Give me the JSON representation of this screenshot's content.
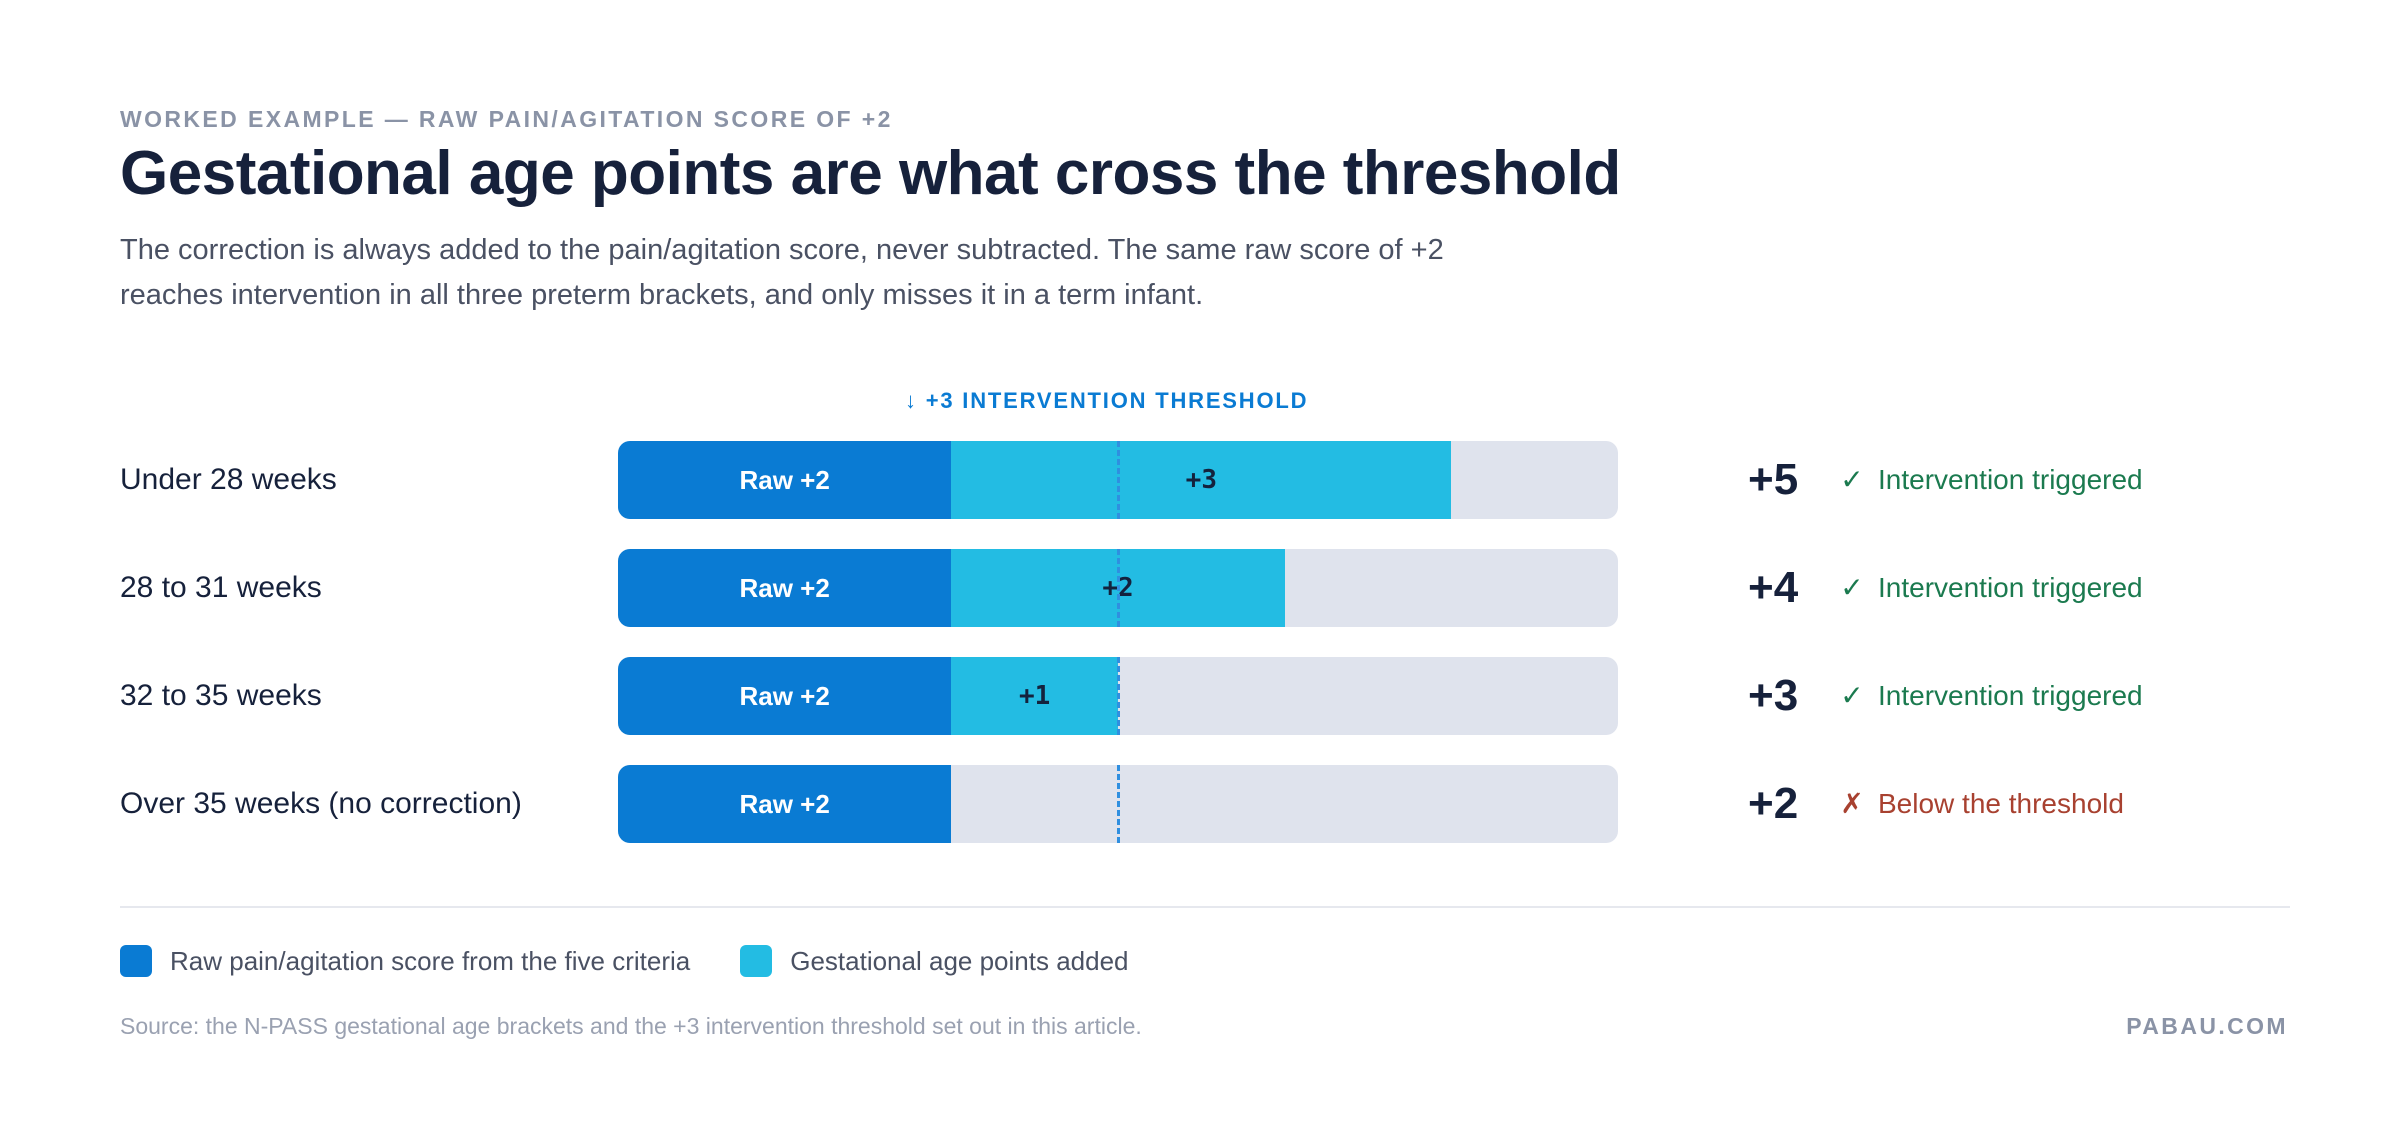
{
  "header": {
    "eyebrow": "WORKED EXAMPLE — RAW PAIN/AGITATION SCORE OF +2",
    "title": "Gestational age points are what cross the threshold",
    "subtitle": "The correction is always added to the pain/agitation score, never subtracted. The same raw score of +2 reaches intervention in all three preterm brackets, and only misses it in a term infant."
  },
  "threshold_label": "↓ +3 INTERVENTION THRESHOLD",
  "colors": {
    "raw": "#0a7bd3",
    "gestational": "#23bce3",
    "track": "#dfe3ed",
    "ok": "#1b7a4f",
    "bad": "#a84130"
  },
  "chart_data": {
    "type": "bar",
    "orientation": "horizontal",
    "stacked": true,
    "xlim": [
      0,
      6
    ],
    "threshold": 3,
    "categories": [
      "Under 28 weeks",
      "28 to 31 weeks",
      "32 to 35 weeks",
      "Over 35 weeks (no correction)"
    ],
    "series": [
      {
        "name": "Raw pain/agitation score from the five criteria",
        "values": [
          2,
          2,
          2,
          2
        ],
        "labels": [
          "Raw +2",
          "Raw +2",
          "Raw +2",
          "Raw +2"
        ]
      },
      {
        "name": "Gestational age points added",
        "values": [
          3,
          2,
          1,
          0
        ],
        "labels": [
          "+3",
          "+2",
          "+1",
          ""
        ]
      }
    ],
    "totals": [
      "+5",
      "+4",
      "+3",
      "+2"
    ],
    "status": [
      {
        "mark": "✓",
        "text": "Intervention triggered",
        "kind": "ok"
      },
      {
        "mark": "✓",
        "text": "Intervention triggered",
        "kind": "ok"
      },
      {
        "mark": "✓",
        "text": "Intervention triggered",
        "kind": "ok"
      },
      {
        "mark": "✗",
        "text": "Below the threshold",
        "kind": "bad"
      }
    ]
  },
  "legend": [
    {
      "label": "Raw pain/agitation score from the five criteria",
      "color": "#0a7bd3"
    },
    {
      "label": "Gestational age points added",
      "color": "#23bce3"
    }
  ],
  "footer": {
    "source": "Source: the N-PASS gestational age brackets and the +3 intervention threshold set out in this article.",
    "brand": "PABAU.COM"
  }
}
